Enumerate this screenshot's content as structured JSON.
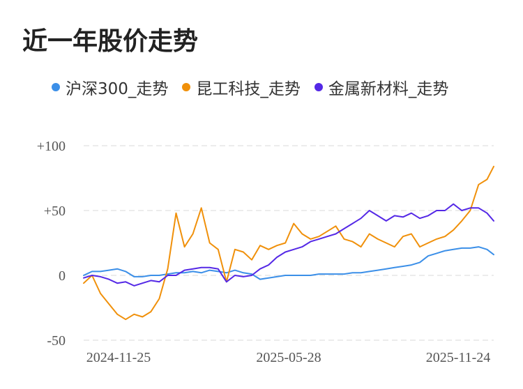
{
  "chart_data": {
    "type": "line",
    "title": "近一年股价走势",
    "xlabel": "",
    "ylabel": "",
    "ylim": [
      -50,
      100
    ],
    "yticks": [
      {
        "value": 100,
        "label": "+100"
      },
      {
        "value": 50,
        "label": "+50"
      },
      {
        "value": 0,
        "label": "0"
      },
      {
        "value": -50,
        "label": "-50"
      }
    ],
    "xticks": [
      "2024-11-25",
      "2025-05-28",
      "2025-11-24"
    ],
    "grid": true,
    "legend_position": "top",
    "x_index": [
      0,
      5,
      10,
      15,
      20,
      25,
      30,
      35,
      40,
      45,
      50,
      55,
      60,
      65,
      70,
      75,
      80,
      85,
      90,
      95,
      100,
      105,
      110,
      115,
      120,
      125,
      130,
      135,
      140,
      145,
      150,
      155,
      160,
      165,
      170,
      175,
      180,
      185,
      190,
      195,
      200,
      205,
      210,
      215,
      220,
      225,
      230,
      235,
      240,
      244
    ],
    "series": [
      {
        "name": "沪深300_走势",
        "color": "#3b8fe8",
        "values": [
          0,
          3,
          3,
          4,
          5,
          3,
          -1,
          -1,
          0,
          0,
          1,
          2,
          2,
          3,
          2,
          4,
          3,
          2,
          4,
          2,
          1,
          -3,
          -2,
          -1,
          0,
          0,
          0,
          0,
          1,
          1,
          1,
          1,
          2,
          2,
          3,
          4,
          5,
          6,
          7,
          8,
          10,
          15,
          17,
          19,
          20,
          21,
          21,
          22,
          20,
          16
        ]
      },
      {
        "name": "昆工科技_走势",
        "color": "#f0900a",
        "values": [
          -6,
          0,
          -14,
          -22,
          -30,
          -34,
          -30,
          -32,
          -28,
          -18,
          5,
          48,
          22,
          32,
          52,
          25,
          20,
          -5,
          20,
          18,
          12,
          23,
          20,
          23,
          25,
          40,
          32,
          28,
          30,
          34,
          38,
          28,
          26,
          22,
          32,
          28,
          25,
          22,
          30,
          32,
          22,
          25,
          28,
          30,
          35,
          42,
          50,
          70,
          74,
          84
        ]
      },
      {
        "name": "金属新材料_走势",
        "color": "#5428e6",
        "values": [
          -2,
          0,
          -1,
          -3,
          -6,
          -5,
          -8,
          -6,
          -4,
          -5,
          0,
          0,
          4,
          5,
          6,
          6,
          5,
          -5,
          0,
          -1,
          0,
          5,
          8,
          14,
          18,
          20,
          22,
          26,
          28,
          30,
          32,
          36,
          40,
          44,
          50,
          46,
          42,
          46,
          45,
          48,
          44,
          46,
          50,
          50,
          55,
          50,
          52,
          52,
          48,
          42
        ]
      }
    ]
  }
}
